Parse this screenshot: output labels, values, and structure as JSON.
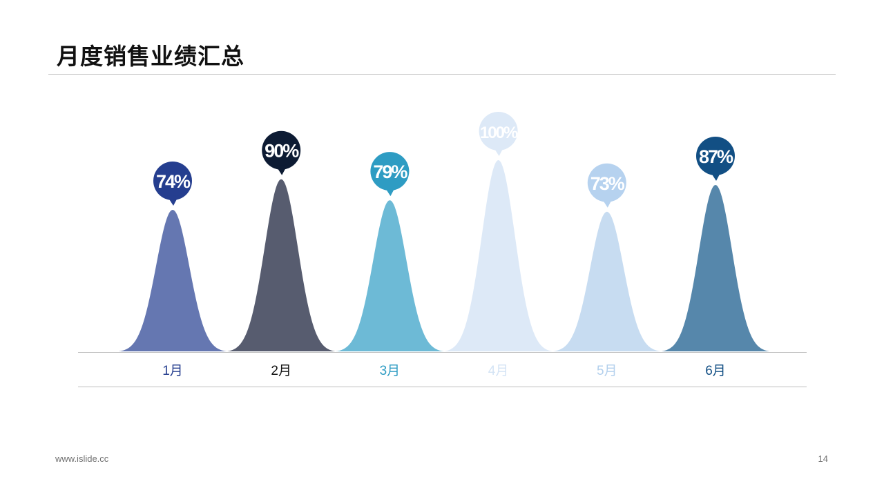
{
  "slide": {
    "title": "月度销售业绩汇总",
    "footer_url": "www.islide.cc",
    "page_number": "14"
  },
  "chart_data": {
    "type": "area",
    "categories": [
      "1月",
      "2月",
      "3月",
      "4月",
      "5月",
      "6月"
    ],
    "values": [
      74,
      90,
      79,
      100,
      73,
      87
    ],
    "value_labels": [
      "74%",
      "90%",
      "79%",
      "100%",
      "73%",
      "87%"
    ],
    "ylim": [
      0,
      100
    ],
    "colors": {
      "peaks": [
        "#6577b1",
        "#575c6f",
        "#6dbad6",
        "#dde9f7",
        "#c7dcf1",
        "#5687ab"
      ],
      "bubbles": [
        "#253e8f",
        "#0d1b33",
        "#2e9cc3",
        "#dde9f7",
        "#b6d2ef",
        "#124f84"
      ],
      "labels": [
        "#253e8f",
        "#111111",
        "#2e9cc3",
        "#d4e4f5",
        "#b3d0ed",
        "#124f84"
      ],
      "overlaps": [
        "#2b3559",
        "#3c8aaa",
        "#b5d6ec",
        "#bcd5ef",
        "#4779a3"
      ]
    }
  }
}
